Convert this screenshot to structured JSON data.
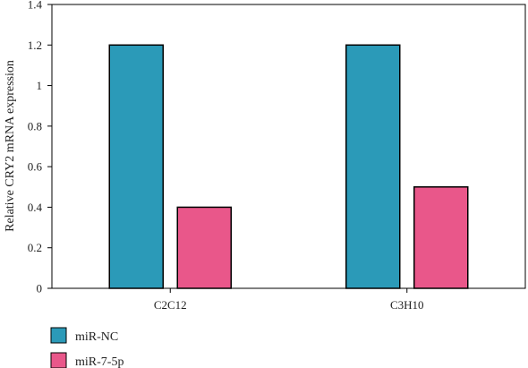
{
  "chart_data": {
    "type": "bar",
    "categories": [
      "C2C12",
      "C3H10"
    ],
    "series": [
      {
        "name": "miR-NC",
        "values": [
          1.2,
          1.2
        ],
        "color": "#2b9ab8"
      },
      {
        "name": "miR-7-5p",
        "values": [
          0.4,
          0.5
        ],
        "color": "#e9578a"
      }
    ],
    "ylabel": "Relative CRY2 mRNA expression",
    "xlabel": "",
    "ylim": [
      0,
      1.4
    ],
    "yticks": [
      0,
      0.2,
      0.4,
      0.6,
      0.8,
      1,
      1.2,
      1.4
    ],
    "grid": false,
    "legend_position": "bottom-left"
  }
}
